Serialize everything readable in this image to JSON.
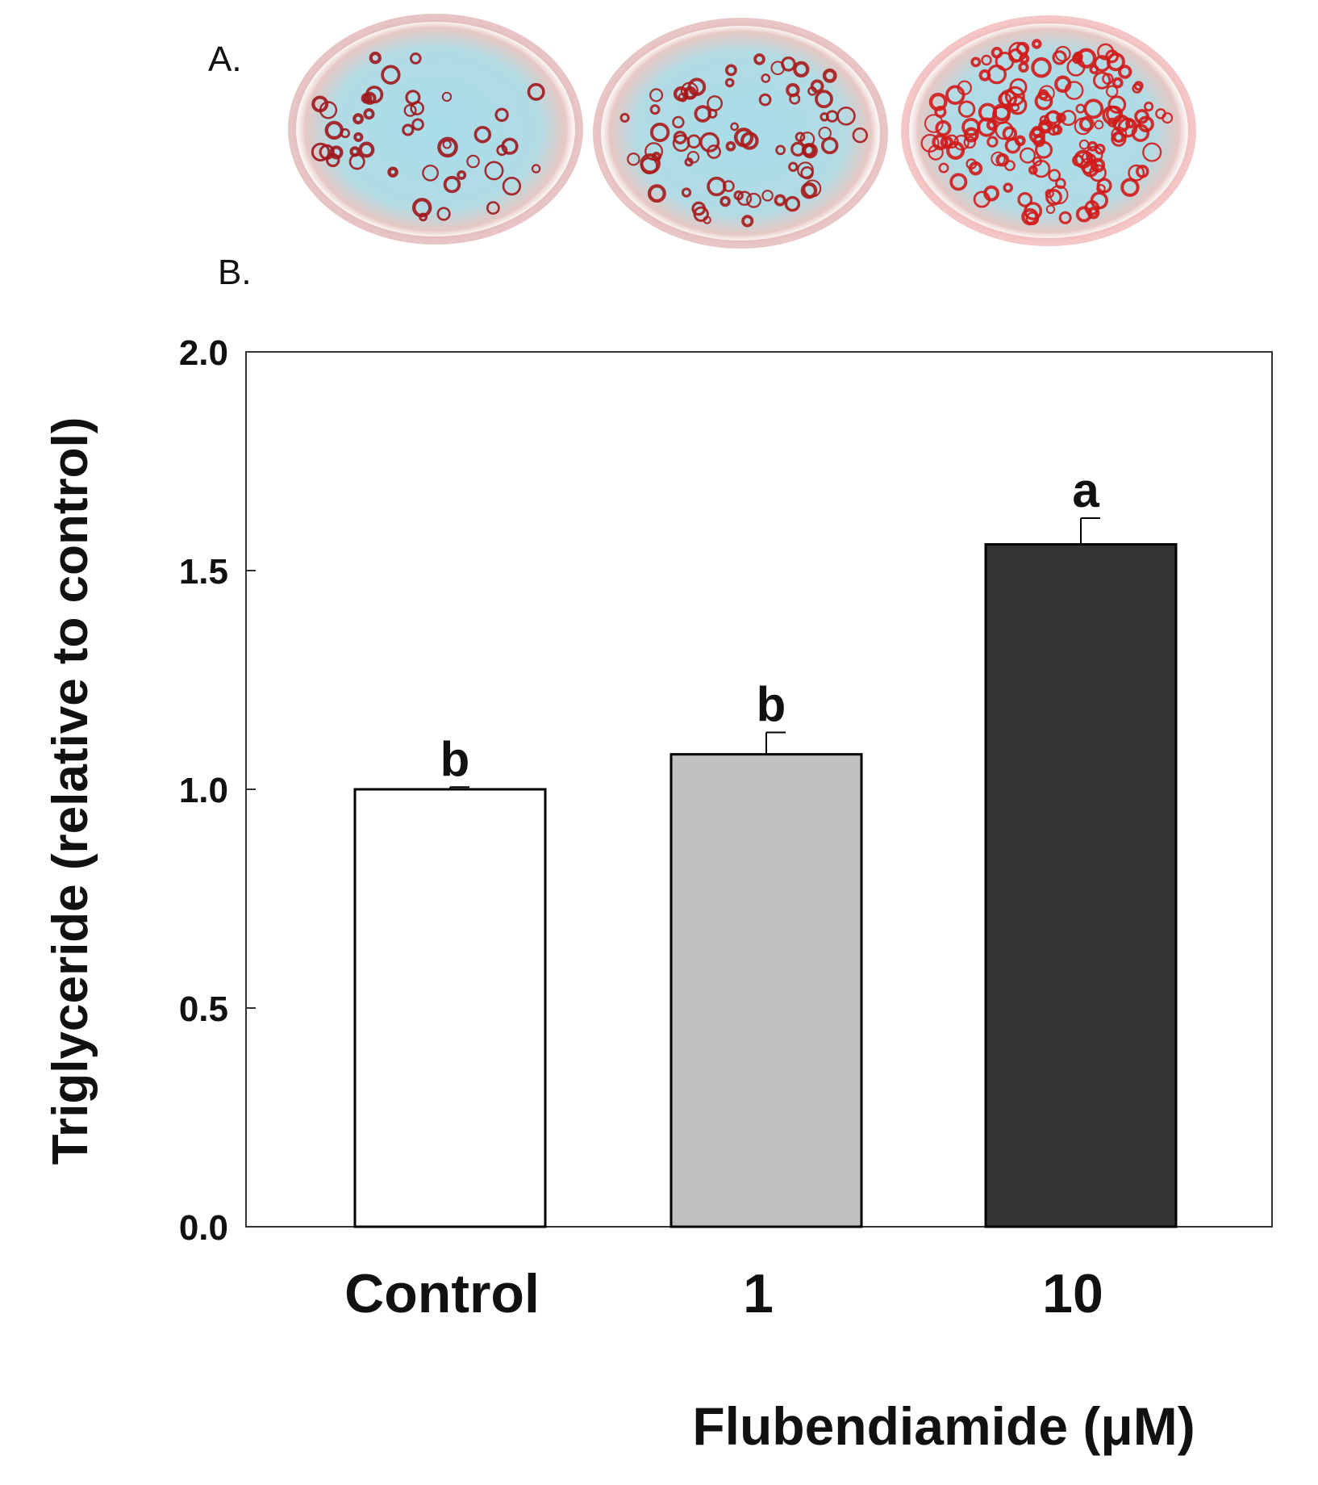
{
  "panel_a": {
    "label": "A.",
    "images": [
      {
        "name": "control-stain",
        "accent": "#a0161c",
        "background": "#a8d9e6",
        "density": "low"
      },
      {
        "name": "1uM-stain",
        "accent": "#a81a1a",
        "background": "#a8d9e6",
        "density": "medium"
      },
      {
        "name": "10uM-stain",
        "accent": "#d21a1a",
        "background": "#a8d9e6",
        "density": "high"
      }
    ]
  },
  "panel_b": {
    "label": "B."
  },
  "chart_data": {
    "type": "bar",
    "title": "",
    "categories": [
      "Control",
      "1",
      "10"
    ],
    "values": [
      1.0,
      1.08,
      1.56
    ],
    "errors": [
      0.005,
      0.05,
      0.06
    ],
    "significance": [
      "b",
      "b",
      "a"
    ],
    "colors": [
      "#ffffff",
      "#c0c0c0",
      "#333333"
    ],
    "xlabel": "Flubendiamide (μM)",
    "ylabel": "Triglyceride (relative to control)",
    "ylim": [
      0,
      2.0
    ],
    "yticks": [
      "0.0",
      "0.5",
      "1.0",
      "1.5",
      "2.0"
    ],
    "grid": false
  }
}
